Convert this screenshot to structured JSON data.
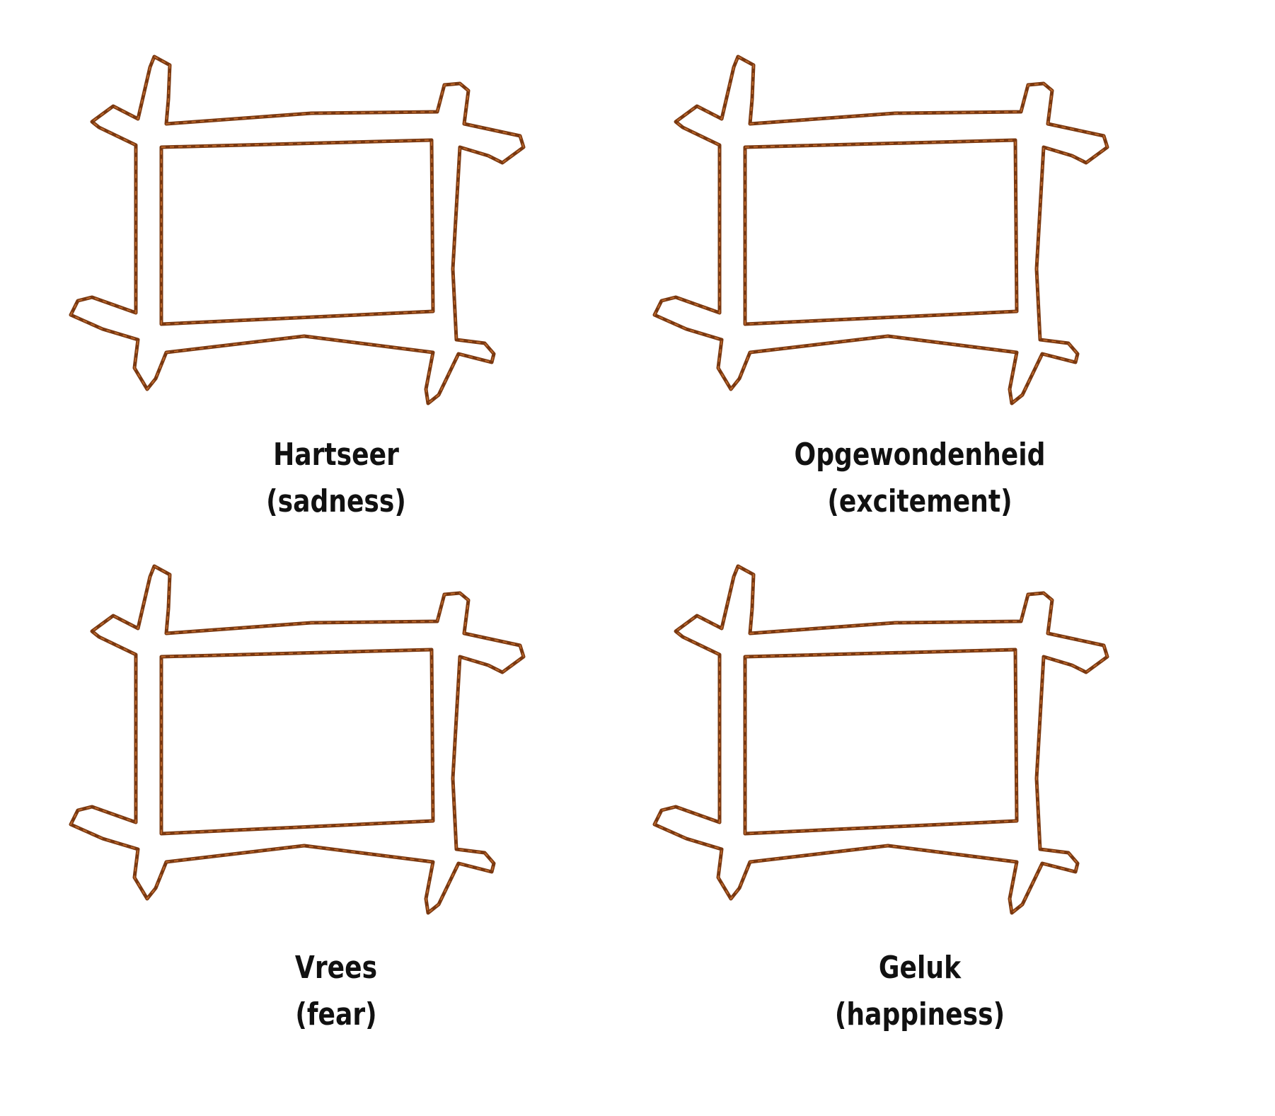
{
  "colors": {
    "frame": "#7a3810",
    "frame_highlight": "#b8652a",
    "background": "#ffffff",
    "text": "#111111"
  },
  "frames": [
    {
      "label": "Hartseer",
      "translation": "(sadness)"
    },
    {
      "label": "Opgewondenheid",
      "translation": "(excitement)"
    },
    {
      "label": "Vrees",
      "translation": "(fear)"
    },
    {
      "label": "Geluk",
      "translation": "(happiness)"
    }
  ]
}
